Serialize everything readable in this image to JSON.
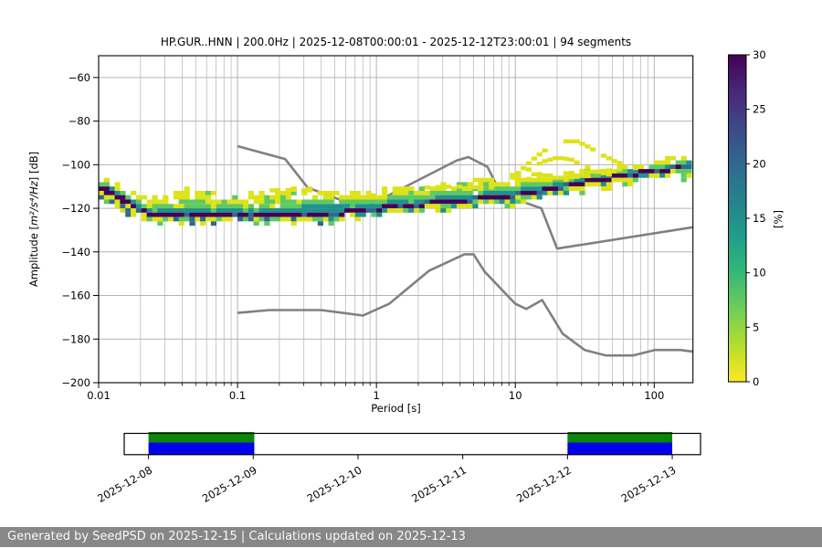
{
  "title": "HP.GUR..HNN | 200.0Hz | 2025-12-08T00:00:01 - 2025-12-12T23:00:01 | 94 segments",
  "footer": {
    "text": "Generated by SeedPSD on 2025-12-15 | Calculations updated on 2025-12-13",
    "background": "#878787",
    "text_color": "#f8f8f8"
  },
  "chart_data": {
    "type": "heatmap",
    "title": "HP.GUR..HNN | 200.0Hz | 2025-12-08T00:00:01 - 2025-12-12T23:00:01 | 94 segments",
    "xlabel": "Period [s]",
    "ylabel_prefix": "Amplitude [",
    "ylabel_math": "m²/s⁴/Hz",
    "ylabel_suffix": "] [dB]",
    "xscale": "log",
    "xlim": [
      0.01,
      190
    ],
    "ylim": [
      -200,
      -50
    ],
    "grid": true,
    "xticks": [
      {
        "v": 0.01,
        "label": "0.01"
      },
      {
        "v": 0.1,
        "label": "0.1"
      },
      {
        "v": 1,
        "label": "1"
      },
      {
        "v": 10,
        "label": "10"
      },
      {
        "v": 100,
        "label": "100"
      }
    ],
    "yticks": [
      {
        "v": -60,
        "label": "−60"
      },
      {
        "v": -80,
        "label": "−80"
      },
      {
        "v": -100,
        "label": "−100"
      },
      {
        "v": -120,
        "label": "−120"
      },
      {
        "v": -140,
        "label": "−140"
      },
      {
        "v": -160,
        "label": "−160"
      },
      {
        "v": -180,
        "label": "−180"
      },
      {
        "v": -200,
        "label": "−200"
      }
    ],
    "colorbar": {
      "label": "[%]",
      "range": [
        0,
        30
      ],
      "ticks": [
        {
          "v": 0,
          "label": "0"
        },
        {
          "v": 5,
          "label": "5"
        },
        {
          "v": 10,
          "label": "10"
        },
        {
          "v": 15,
          "label": "15"
        },
        {
          "v": 20,
          "label": "20"
        },
        {
          "v": 25,
          "label": "25"
        },
        {
          "v": 30,
          "label": "30"
        }
      ],
      "stops_bottom_to_top": [
        "#fde725",
        "#b5de2b",
        "#6ece58",
        "#35b779",
        "#1f9e89",
        "#26828e",
        "#31688e",
        "#3e4989",
        "#482878",
        "#440154"
      ]
    },
    "noise_models": {
      "color": "#808080",
      "nhnm": [
        [
          0.1,
          -91.5
        ],
        [
          0.22,
          -97.4
        ],
        [
          0.32,
          -110.5
        ],
        [
          0.8,
          -120
        ],
        [
          3.8,
          -98
        ],
        [
          4.6,
          -96.5
        ],
        [
          6.3,
          -101
        ],
        [
          7.9,
          -113.5
        ],
        [
          15.4,
          -120
        ],
        [
          20,
          -138.5
        ],
        [
          190,
          -128.7
        ]
      ],
      "nlnm": [
        [
          0.1,
          -168
        ],
        [
          0.17,
          -166.7
        ],
        [
          0.4,
          -166.7
        ],
        [
          0.8,
          -169.2
        ],
        [
          1.24,
          -163.7
        ],
        [
          2.4,
          -148.6
        ],
        [
          4.3,
          -141.1
        ],
        [
          5,
          -141.1
        ],
        [
          6,
          -149
        ],
        [
          10,
          -163.8
        ],
        [
          12,
          -166.2
        ],
        [
          15.6,
          -162.1
        ],
        [
          21.9,
          -177.5
        ],
        [
          31.6,
          -185
        ],
        [
          45,
          -187.5
        ],
        [
          70,
          -187.5
        ],
        [
          101,
          -185
        ],
        [
          154,
          -185
        ],
        [
          190,
          -185.7
        ]
      ]
    },
    "ppsd_band": {
      "colors": {
        "dark": "#440154",
        "blue": "#31688e",
        "teal": "#21918c",
        "green": "#5ec963",
        "yellow": "#dde318"
      },
      "points": [
        [
          0.01,
          -104.5,
          -106.5,
          -108.0,
          -109.0,
          -112.0,
          -114.5
        ],
        [
          0.013,
          -108.5,
          -110.5,
          -111.5,
          -112.5,
          -115.0,
          -117.5
        ],
        [
          0.017,
          -113.0,
          -115.0,
          -116.0,
          -117.0,
          -119.5,
          -122.0
        ],
        [
          0.022,
          -116.0,
          -118.5,
          -119.5,
          -121.0,
          -123.5,
          -125.2
        ],
        [
          0.03,
          -113.5,
          -117.5,
          -119.5,
          -121.5,
          -123.8,
          -125.0
        ],
        [
          0.05,
          -111.5,
          -116.5,
          -119.0,
          -121.5,
          -123.8,
          -125.0
        ],
        [
          0.08,
          -114.0,
          -117.5,
          -119.5,
          -121.8,
          -123.8,
          -124.8
        ],
        [
          0.15,
          -113.5,
          -117.0,
          -119.5,
          -121.8,
          -123.8,
          -124.8
        ],
        [
          0.3,
          -112.0,
          -116.5,
          -119.0,
          -121.5,
          -123.5,
          -124.5
        ],
        [
          0.6,
          -113.0,
          -117.0,
          -119.0,
          -121.0,
          -123.0,
          -124.0
        ],
        [
          1.0,
          -112.0,
          -115.5,
          -117.5,
          -119.3,
          -121.3,
          -122.3
        ],
        [
          2.0,
          -110.5,
          -113.5,
          -115.5,
          -117.3,
          -119.3,
          -120.3
        ],
        [
          4.0,
          -107.5,
          -111.5,
          -113.8,
          -115.6,
          -117.6,
          -118.6
        ],
        [
          8.0,
          -106.0,
          -110.0,
          -112.3,
          -113.9,
          -115.9,
          -116.9
        ],
        [
          15.0,
          -105.0,
          -108.0,
          -110.0,
          -111.3,
          -113.3,
          -114.3
        ],
        [
          30.0,
          -103.0,
          -105.3,
          -106.6,
          -107.3,
          -109.3,
          -110.3
        ],
        [
          60.0,
          -100.8,
          -102.3,
          -103.3,
          -104.0,
          -105.8,
          -106.8
        ],
        [
          100.0,
          -99.3,
          -100.6,
          -101.6,
          -102.2,
          -104.0,
          -105.0
        ],
        [
          140.0,
          -97.5,
          -99.0,
          -100.0,
          -100.8,
          -102.6,
          -103.8
        ],
        [
          190.0,
          -95.8,
          -97.3,
          -98.3,
          -99.3,
          -101.5,
          -104.5
        ]
      ]
    },
    "spectral_arcs": [
      {
        "gap": 28,
        "points": [
          [
            9,
            -107.5
          ],
          [
            11,
            -102.5
          ],
          [
            14,
            -96.5
          ],
          [
            18,
            -91.5
          ],
          [
            23,
            -89.3
          ],
          [
            28,
            -89.3
          ],
          [
            34,
            -92
          ],
          [
            42,
            -95.5
          ],
          [
            52,
            -98.5
          ],
          [
            65,
            -100.5
          ],
          [
            80,
            -101.5
          ]
        ]
      },
      {
        "gap": 32,
        "points": [
          [
            10,
            -106
          ],
          [
            13,
            -101.5
          ],
          [
            16,
            -98.5
          ],
          [
            20,
            -96.8
          ],
          [
            25,
            -97.5
          ],
          [
            31,
            -100.5
          ],
          [
            40,
            -103.5
          ],
          [
            50,
            -104.8
          ]
        ]
      },
      {
        "gap": 40,
        "points": [
          [
            8,
            -104.8
          ],
          [
            15,
            -104.3
          ],
          [
            25,
            -103.8
          ],
          [
            40,
            -103
          ],
          [
            60,
            -102
          ],
          [
            80,
            -101.3
          ]
        ]
      },
      {
        "gap": 42,
        "points": [
          [
            12,
            -106.5
          ],
          [
            20,
            -106
          ],
          [
            30,
            -105.5
          ],
          [
            45,
            -104.5
          ]
        ]
      },
      {
        "gap": 40,
        "points": [
          [
            1.8,
            -110.8
          ],
          [
            2.6,
            -110.3
          ],
          [
            3.6,
            -110
          ],
          [
            5,
            -110.3
          ],
          [
            7,
            -110.5
          ]
        ]
      },
      {
        "gap": 42,
        "points": [
          [
            0.17,
            -111.8
          ],
          [
            0.25,
            -111.5
          ],
          [
            0.35,
            -111.8
          ]
        ]
      },
      {
        "gap": 42,
        "points": [
          [
            0.55,
            -114.8
          ],
          [
            0.8,
            -114.5
          ],
          [
            1.1,
            -113.8
          ]
        ]
      }
    ],
    "timeline": {
      "dates": [
        "2025-12-08",
        "2025-12-09",
        "2025-12-10",
        "2025-12-11",
        "2025-12-12",
        "2025-12-13"
      ],
      "pad_days_before": 0.232,
      "pad_days_after": 0.27,
      "segments": [
        {
          "from_day": 0,
          "to_day": 1.01
        },
        {
          "from_day": 4.0,
          "to_day": 5.0
        }
      ],
      "segment_green": "#0b860b",
      "segment_blue": "#0000ee"
    }
  }
}
